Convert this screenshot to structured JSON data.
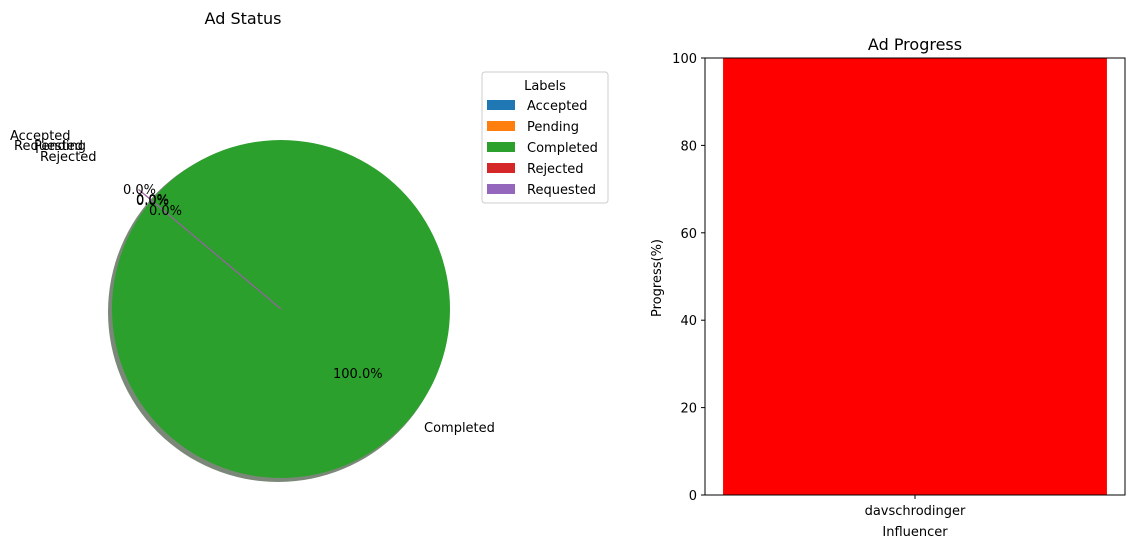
{
  "chart_data": [
    {
      "type": "pie",
      "title": "Ad Status",
      "shadow": true,
      "labels": [
        "Accepted",
        "Pending",
        "Completed",
        "Rejected",
        "Requested"
      ],
      "values": [
        0,
        0,
        100,
        0,
        0
      ],
      "pct_labels": [
        "0.0%",
        "0.0%",
        "100.0%",
        "0.0%",
        "0.0%"
      ],
      "colors": [
        "#1f77b4",
        "#ff7f0e",
        "#2ca02c",
        "#d62728",
        "#9467bd"
      ],
      "legend": {
        "title": "Labels",
        "placement": "upper-right",
        "entries": [
          "Accepted",
          "Pending",
          "Completed",
          "Rejected",
          "Requested"
        ]
      }
    },
    {
      "type": "bar",
      "title": "Ad Progress",
      "xlabel": "Influencer",
      "ylabel": "Progress(%)",
      "categories": [
        "davschrodinger"
      ],
      "values": [
        100
      ],
      "bar_color": "#ff0000",
      "ylim": [
        0,
        100
      ],
      "yticks": [
        0,
        20,
        40,
        60,
        80,
        100
      ],
      "grid": false
    }
  ]
}
